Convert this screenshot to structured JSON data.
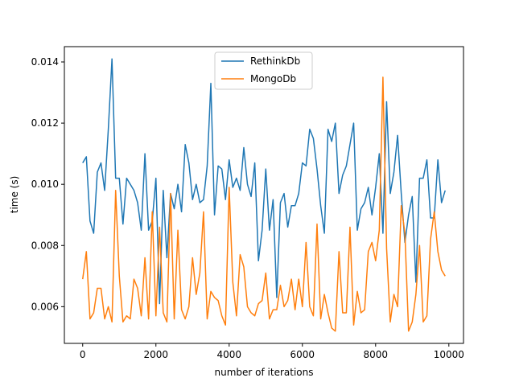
{
  "chart_data": {
    "type": "line",
    "title": "",
    "xlabel": "number of iterations",
    "ylabel": "time (s)",
    "xlim": [
      -500,
      10400
    ],
    "ylim": [
      0.0048,
      0.0145
    ],
    "xticks": [
      0,
      2000,
      4000,
      6000,
      8000,
      10000
    ],
    "xtick_labels": [
      "0",
      "2000",
      "4000",
      "6000",
      "8000",
      "10000"
    ],
    "yticks": [
      0.006,
      0.008,
      0.01,
      0.012,
      0.014
    ],
    "ytick_labels": [
      "0.006",
      "0.008",
      "0.010",
      "0.012",
      "0.014"
    ],
    "grid": false,
    "legend": "upper-center",
    "x_start": 0,
    "x_step": 100,
    "series": [
      {
        "name": "RethinkDb",
        "color": "#1f77b4",
        "values": [
          0.0107,
          0.0109,
          0.0088,
          0.0084,
          0.0104,
          0.0107,
          0.0098,
          0.0118,
          0.0141,
          0.0102,
          0.0102,
          0.0087,
          0.0102,
          0.01,
          0.0098,
          0.0094,
          0.0085,
          0.011,
          0.0085,
          0.0088,
          0.0102,
          0.0061,
          0.0098,
          0.0076,
          0.0097,
          0.0092,
          0.01,
          0.0091,
          0.0113,
          0.0107,
          0.0095,
          0.01,
          0.0094,
          0.0095,
          0.0106,
          0.0133,
          0.009,
          0.0106,
          0.0105,
          0.0095,
          0.0108,
          0.0099,
          0.0102,
          0.0098,
          0.0112,
          0.01,
          0.0096,
          0.0107,
          0.0075,
          0.0085,
          0.0105,
          0.0085,
          0.0095,
          0.0063,
          0.0094,
          0.0097,
          0.0086,
          0.0093,
          0.0093,
          0.0097,
          0.0107,
          0.0106,
          0.0118,
          0.0115,
          0.0105,
          0.0093,
          0.0084,
          0.0118,
          0.0114,
          0.012,
          0.0097,
          0.0103,
          0.0106,
          0.0113,
          0.012,
          0.0085,
          0.0092,
          0.0094,
          0.0099,
          0.009,
          0.0099,
          0.011,
          0.0084,
          0.0127,
          0.0097,
          0.0104,
          0.0116,
          0.0097,
          0.0081,
          0.009,
          0.0096,
          0.0068,
          0.0102,
          0.0102,
          0.0108,
          0.0089,
          0.0089,
          0.0108,
          0.0094,
          0.0098
        ]
      },
      {
        "name": "MongoDb",
        "color": "#ff7f0e",
        "values": [
          0.0069,
          0.0078,
          0.0056,
          0.0058,
          0.0066,
          0.0066,
          0.0056,
          0.006,
          0.0055,
          0.0098,
          0.007,
          0.0055,
          0.0057,
          0.0056,
          0.0069,
          0.0066,
          0.0057,
          0.0076,
          0.0056,
          0.0091,
          0.0057,
          0.0086,
          0.0058,
          0.0055,
          0.0097,
          0.0056,
          0.0085,
          0.0059,
          0.0056,
          0.006,
          0.0076,
          0.0064,
          0.0071,
          0.0091,
          0.0056,
          0.0065,
          0.0063,
          0.0062,
          0.0057,
          0.0054,
          0.0099,
          0.0068,
          0.0057,
          0.0077,
          0.0073,
          0.006,
          0.0058,
          0.0057,
          0.0061,
          0.0062,
          0.0071,
          0.0056,
          0.0059,
          0.0059,
          0.0067,
          0.006,
          0.0062,
          0.0069,
          0.0059,
          0.0069,
          0.006,
          0.0081,
          0.006,
          0.0057,
          0.0087,
          0.0056,
          0.0064,
          0.0058,
          0.0053,
          0.0052,
          0.0078,
          0.0058,
          0.0058,
          0.0086,
          0.0054,
          0.0065,
          0.0058,
          0.0059,
          0.0078,
          0.0081,
          0.0075,
          0.0085,
          0.0135,
          0.0079,
          0.0055,
          0.0064,
          0.006,
          0.0093,
          0.0084,
          0.0052,
          0.0055,
          0.0064,
          0.008,
          0.0055,
          0.0057,
          0.0082,
          0.0091,
          0.0078,
          0.0072,
          0.007
        ]
      }
    ]
  }
}
